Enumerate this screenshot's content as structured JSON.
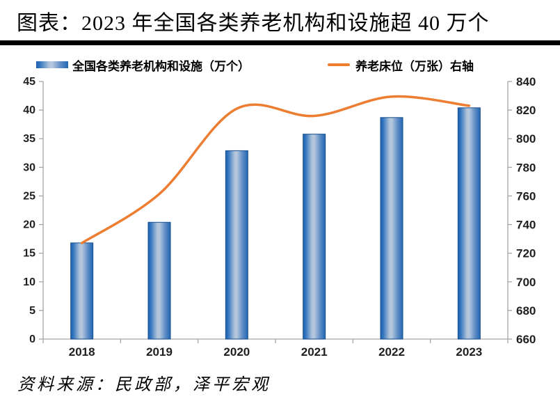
{
  "header": {
    "title": "图表：2023 年全国各类养老机构和设施超 40 万个"
  },
  "legend": {
    "bar_label": "全国各类养老机构和设施（万个）",
    "line_label": "养老床位（万张）右轴"
  },
  "chart_data": {
    "type": "bar+line combo",
    "categories": [
      "2018",
      "2019",
      "2020",
      "2021",
      "2022",
      "2023"
    ],
    "series": [
      {
        "name": "全国各类养老机构和设施（万个）",
        "type": "bar",
        "axis": "left",
        "values": [
          16.8,
          20.4,
          32.9,
          35.8,
          38.7,
          40.4
        ]
      },
      {
        "name": "养老床位（万张）右轴",
        "type": "line",
        "axis": "right",
        "smooth": true,
        "values": [
          727.1,
          761.4,
          821.0,
          815.9,
          829.4,
          823.0
        ]
      }
    ],
    "y_left": {
      "min": 0,
      "max": 45,
      "step": 5
    },
    "y_right": {
      "min": 660,
      "max": 840,
      "step": 20
    },
    "grid": false,
    "legend_position": "top",
    "colors": {
      "bar_edge_dark": "#1D61AF",
      "bar_center_light": "#B6C8DE",
      "bar_border": "#1A4F8D",
      "line": "#ED7D31",
      "axis": "#A6A6A6",
      "tick_label": "#1F1F1F"
    }
  },
  "source": {
    "text": "资料来源：民政部，泽平宏观"
  }
}
